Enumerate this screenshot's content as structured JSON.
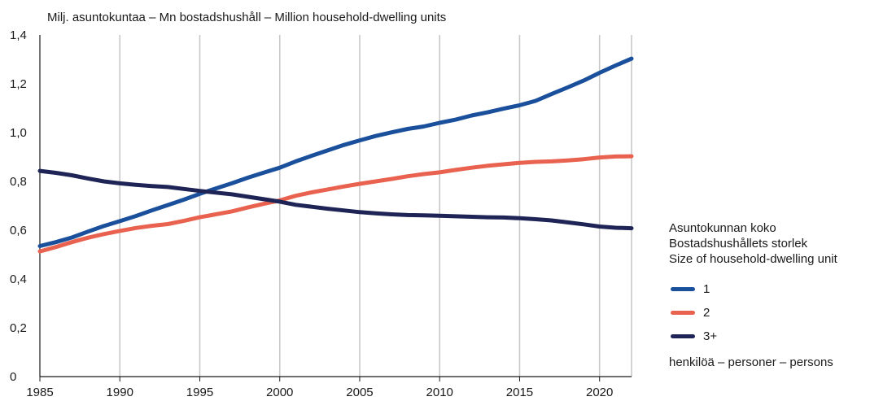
{
  "chart_data": {
    "type": "line",
    "title": "",
    "unit_label": "Milj. asuntokuntaa – Mn bostadshushåll – Million household-dwelling units",
    "xlabel": "",
    "ylabel": "",
    "xlim": [
      1985,
      2022
    ],
    "ylim": [
      0,
      1.4
    ],
    "x_ticks": [
      "1985",
      "1990",
      "1995",
      "2000",
      "2005",
      "2010",
      "2015",
      "2020"
    ],
    "x_tick_values": [
      1985,
      1990,
      1995,
      2000,
      2005,
      2010,
      2015,
      2020
    ],
    "y_ticks": [
      "0",
      "0,2",
      "0,4",
      "0,6",
      "0,8",
      "1,0",
      "1,2",
      "1,4"
    ],
    "y_tick_values": [
      0,
      0.2,
      0.4,
      0.6,
      0.8,
      1.0,
      1.2,
      1.4
    ],
    "grid": "vertical",
    "x": [
      1985,
      1986,
      1987,
      1988,
      1989,
      1990,
      1991,
      1992,
      1993,
      1994,
      1995,
      1996,
      1997,
      1998,
      1999,
      2000,
      2001,
      2002,
      2003,
      2004,
      2005,
      2006,
      2007,
      2008,
      2009,
      2010,
      2011,
      2012,
      2013,
      2014,
      2015,
      2016,
      2017,
      2018,
      2019,
      2020,
      2021,
      2022
    ],
    "series": [
      {
        "name": "1",
        "color": "#1a4f9c",
        "values": [
          0.535,
          0.551,
          0.57,
          0.594,
          0.617,
          0.637,
          0.658,
          0.681,
          0.703,
          0.725,
          0.749,
          0.771,
          0.792,
          0.815,
          0.836,
          0.856,
          0.882,
          0.905,
          0.927,
          0.949,
          0.968,
          0.986,
          1.001,
          1.015,
          1.025,
          1.04,
          1.053,
          1.07,
          1.083,
          1.098,
          1.112,
          1.13,
          1.158,
          1.185,
          1.213,
          1.245,
          1.275,
          1.303
        ]
      },
      {
        "name": "2",
        "color": "#e8624f",
        "values": [
          0.513,
          0.531,
          0.551,
          0.569,
          0.584,
          0.597,
          0.609,
          0.618,
          0.625,
          0.638,
          0.653,
          0.665,
          0.677,
          0.693,
          0.708,
          0.722,
          0.741,
          0.755,
          0.767,
          0.779,
          0.79,
          0.8,
          0.81,
          0.821,
          0.83,
          0.837,
          0.847,
          0.856,
          0.864,
          0.87,
          0.876,
          0.88,
          0.882,
          0.886,
          0.891,
          0.898,
          0.902,
          0.903
        ]
      },
      {
        "name": "3+",
        "color": "#1e2456",
        "values": [
          0.843,
          0.835,
          0.825,
          0.812,
          0.8,
          0.792,
          0.786,
          0.781,
          0.777,
          0.769,
          0.761,
          0.754,
          0.747,
          0.737,
          0.727,
          0.717,
          0.704,
          0.696,
          0.688,
          0.681,
          0.674,
          0.669,
          0.665,
          0.662,
          0.661,
          0.659,
          0.657,
          0.655,
          0.653,
          0.652,
          0.649,
          0.645,
          0.64,
          0.632,
          0.624,
          0.615,
          0.61,
          0.608
        ]
      }
    ],
    "legend": {
      "placement": "right",
      "title_lines": [
        "Asuntokunnan koko",
        "Bostadshushållets storlek",
        "Size of household-dwelling unit"
      ],
      "note": "henkilöä – personer – persons"
    }
  }
}
